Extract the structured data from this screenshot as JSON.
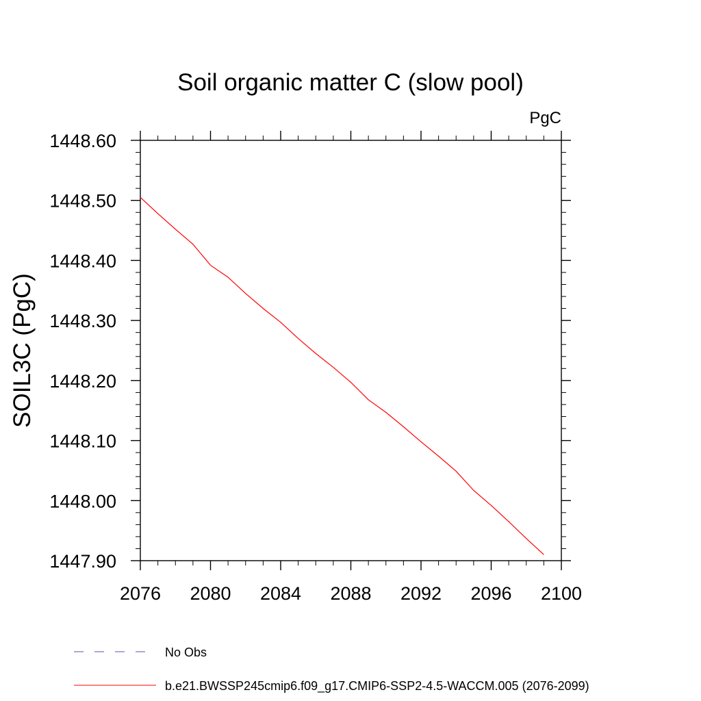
{
  "chart_data": {
    "type": "line",
    "title": "Soil organic matter C (slow pool)",
    "units_label": "PgC",
    "xlabel": "",
    "ylabel": "SOIL3C  (PgC)",
    "xlim": [
      2076,
      2100
    ],
    "ylim": [
      1447.9,
      1448.6
    ],
    "x_ticks": [
      "2076",
      "2080",
      "2084",
      "2088",
      "2092",
      "2096",
      "2100"
    ],
    "y_ticks": [
      "1447.90",
      "1448.00",
      "1448.10",
      "1448.20",
      "1448.30",
      "1448.40",
      "1448.50",
      "1448.60"
    ],
    "series": [
      {
        "name": "b.e21.BWSSP245cmip6.f09_g17.CMIP6-SSP2-4.5-WACCM.005 (2076-2099)",
        "color": "#ff0000",
        "style": "solid",
        "x": [
          2076,
          2077,
          2078,
          2079,
          2080,
          2081,
          2082,
          2083,
          2084,
          2085,
          2086,
          2087,
          2088,
          2089,
          2090,
          2091,
          2092,
          2093,
          2094,
          2095,
          2096,
          2097,
          2098,
          2099
        ],
        "values": [
          1448.505,
          1448.478,
          1448.452,
          1448.427,
          1448.392,
          1448.372,
          1448.345,
          1448.32,
          1448.297,
          1448.27,
          1448.245,
          1448.222,
          1448.197,
          1448.168,
          1448.147,
          1448.123,
          1448.098,
          1448.074,
          1448.049,
          1448.017,
          1447.992,
          1447.965,
          1447.937,
          1447.91
        ]
      },
      {
        "name": "No Obs",
        "color": "#5a4fb0",
        "style": "dashed",
        "x": [],
        "values": []
      }
    ],
    "grid": false,
    "legend_position": "bottom"
  }
}
